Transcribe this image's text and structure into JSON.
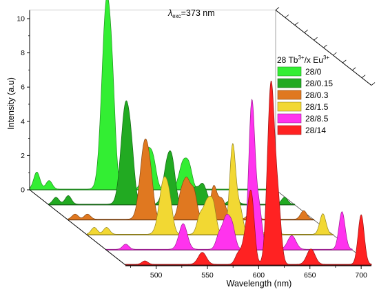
{
  "chart_data": {
    "type": "area",
    "annotation": {
      "lambda": "λ",
      "subscript": "exc",
      "value": "=373  nm"
    },
    "xlabel": "Wavelength (nm)",
    "ylabel": "Intensity (a.u)",
    "xlim": [
      470,
      710
    ],
    "ylim": [
      0,
      10.5
    ],
    "x_ticks": [
      500,
      550,
      600,
      650,
      700
    ],
    "y_ticks": [
      0,
      2,
      4,
      6,
      8,
      10
    ],
    "legend": {
      "title_parts": [
        "28 Tb",
        "3+",
        "/x Eu",
        "3+"
      ],
      "placement": "right"
    },
    "series": [
      {
        "name": "28/0",
        "color": "#33ee33",
        "peaks": [
          {
            "x": 477,
            "y": 1.0,
            "w": 3
          },
          {
            "x": 489,
            "y": 0.5,
            "w": 3
          },
          {
            "x": 545,
            "y": 10.8,
            "w": 4.5
          },
          {
            "x": 551,
            "y": 3.0,
            "w": 3
          },
          {
            "x": 585,
            "y": 2.2,
            "w": 4
          },
          {
            "x": 591,
            "y": 1.2,
            "w": 3
          },
          {
            "x": 620,
            "y": 1.6,
            "w": 4
          },
          {
            "x": 626,
            "y": 1.0,
            "w": 3
          }
        ]
      },
      {
        "name": "28/0.15",
        "color": "#22aa22",
        "peaks": [
          {
            "x": 477,
            "y": 0.4,
            "w": 3
          },
          {
            "x": 489,
            "y": 0.5,
            "w": 3
          },
          {
            "x": 545,
            "y": 5.8,
            "w": 4.5
          },
          {
            "x": 551,
            "y": 1.5,
            "w": 3
          },
          {
            "x": 586,
            "y": 2.5,
            "w": 4
          },
          {
            "x": 591,
            "y": 1.5,
            "w": 3
          },
          {
            "x": 612,
            "y": 0.8,
            "w": 3
          },
          {
            "x": 620,
            "y": 1.2,
            "w": 4
          },
          {
            "x": 650,
            "y": 0.4,
            "w": 4
          },
          {
            "x": 700,
            "y": 0.4,
            "w": 3
          }
        ]
      },
      {
        "name": "28/0.3",
        "color": "#e07820",
        "peaks": [
          {
            "x": 477,
            "y": 0.3,
            "w": 3
          },
          {
            "x": 489,
            "y": 0.3,
            "w": 3
          },
          {
            "x": 545,
            "y": 4.5,
            "w": 4.5
          },
          {
            "x": 551,
            "y": 1.2,
            "w": 3
          },
          {
            "x": 580,
            "y": 1.2,
            "w": 3
          },
          {
            "x": 586,
            "y": 2.2,
            "w": 3.5
          },
          {
            "x": 593,
            "y": 1.5,
            "w": 3
          },
          {
            "x": 612,
            "y": 1.8,
            "w": 3
          },
          {
            "x": 620,
            "y": 1.2,
            "w": 4
          },
          {
            "x": 650,
            "y": 0.5,
            "w": 4
          },
          {
            "x": 700,
            "y": 0.5,
            "w": 3
          }
        ]
      },
      {
        "name": "28/1.5",
        "color": "#f2d833",
        "peaks": [
          {
            "x": 477,
            "y": 0.4,
            "w": 3
          },
          {
            "x": 489,
            "y": 0.4,
            "w": 3
          },
          {
            "x": 545,
            "y": 3.2,
            "w": 4.5
          },
          {
            "x": 551,
            "y": 1.0,
            "w": 3
          },
          {
            "x": 580,
            "y": 1.0,
            "w": 3
          },
          {
            "x": 587,
            "y": 1.8,
            "w": 3.5
          },
          {
            "x": 593,
            "y": 1.6,
            "w": 3
          },
          {
            "x": 612,
            "y": 5.2,
            "w": 3
          },
          {
            "x": 619,
            "y": 1.5,
            "w": 3
          },
          {
            "x": 650,
            "y": 0.6,
            "w": 4
          },
          {
            "x": 700,
            "y": 1.2,
            "w": 3
          }
        ]
      },
      {
        "name": "28/8.5",
        "color": "#ff33ee",
        "peaks": [
          {
            "x": 489,
            "y": 0.3,
            "w": 3
          },
          {
            "x": 545,
            "y": 1.5,
            "w": 4
          },
          {
            "x": 580,
            "y": 0.8,
            "w": 3
          },
          {
            "x": 587,
            "y": 1.8,
            "w": 3.5
          },
          {
            "x": 593,
            "y": 1.2,
            "w": 3
          },
          {
            "x": 612,
            "y": 8.6,
            "w": 3
          },
          {
            "x": 619,
            "y": 2.4,
            "w": 3
          },
          {
            "x": 651,
            "y": 0.8,
            "w": 4
          },
          {
            "x": 700,
            "y": 2.2,
            "w": 3
          }
        ]
      },
      {
        "name": "28/14",
        "color": "#ff2222",
        "peaks": [
          {
            "x": 489,
            "y": 0.2,
            "w": 3
          },
          {
            "x": 545,
            "y": 0.7,
            "w": 4
          },
          {
            "x": 580,
            "y": 0.6,
            "w": 3
          },
          {
            "x": 588,
            "y": 1.8,
            "w": 3.5
          },
          {
            "x": 593,
            "y": 3.6,
            "w": 3
          },
          {
            "x": 612,
            "y": 10.5,
            "w": 3.5
          },
          {
            "x": 619,
            "y": 3.2,
            "w": 3
          },
          {
            "x": 651,
            "y": 0.9,
            "w": 4
          },
          {
            "x": 700,
            "y": 2.9,
            "w": 3
          }
        ]
      }
    ]
  }
}
